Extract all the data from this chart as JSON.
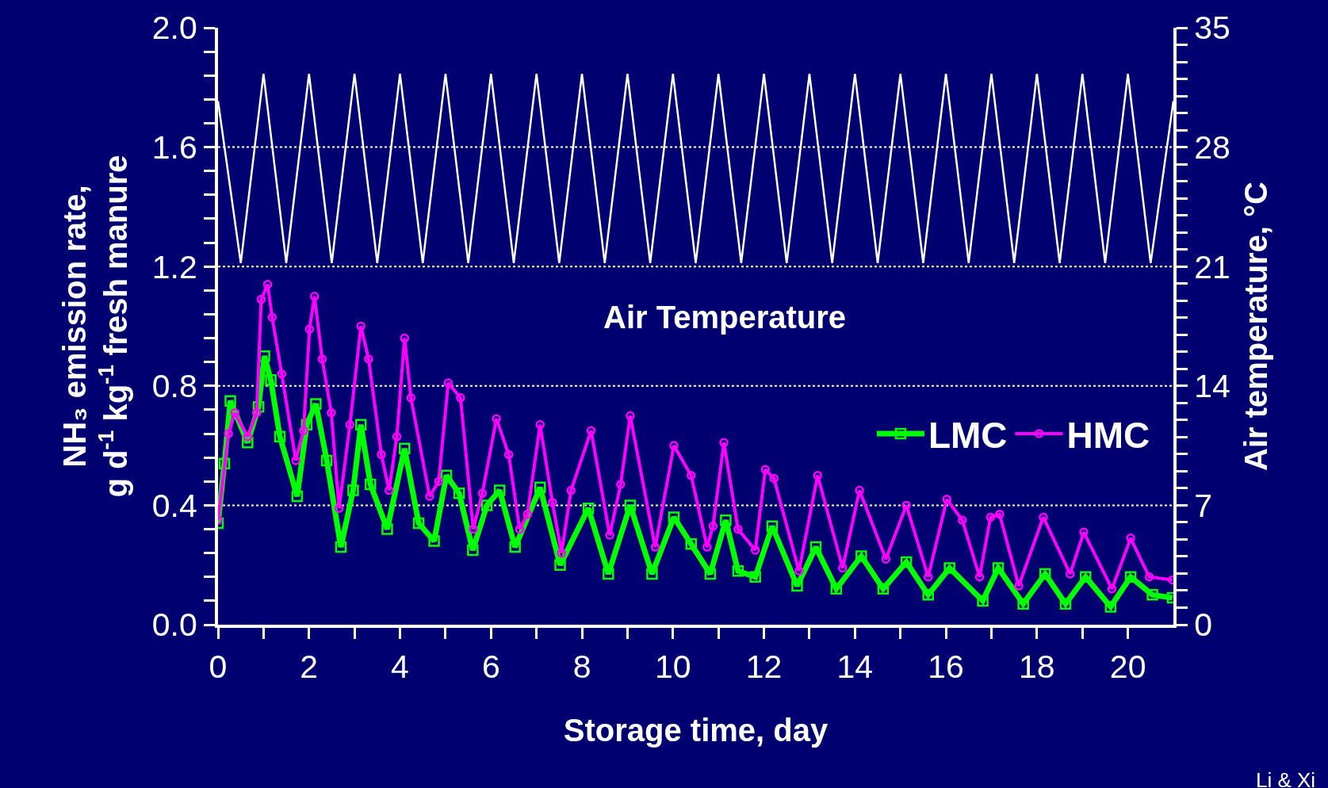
{
  "chart_data": {
    "type": "line",
    "xlabel": "Storage time, day",
    "ylabel": "NH₃ emission rate,\ng d$^{-1}$ kg$^{-1}$ fresh manure",
    "y2label": "Air temperature, °C",
    "annotations": [
      "Air Temperature",
      "Li & Xi"
    ],
    "xlim": [
      0,
      21
    ],
    "xticks": [
      0,
      {
        "value": 1,
        "label": null
      },
      2,
      {
        "value": 3,
        "label": null
      },
      4,
      {
        "value": 5,
        "label": null
      },
      6,
      {
        "value": 7,
        "label": null
      },
      8,
      {
        "value": 9,
        "label": null
      },
      10,
      {
        "value": 11,
        "label": null
      },
      12,
      {
        "value": 13,
        "label": null
      },
      14,
      {
        "value": 15,
        "label": null
      },
      16,
      {
        "value": 17,
        "label": null
      },
      18,
      {
        "value": 19,
        "label": null
      },
      20
    ],
    "ylim": [
      0,
      2
    ],
    "yticks": [
      {
        "value": 0,
        "label": "0.0"
      },
      {
        "value": 0.08,
        "label": null
      },
      {
        "value": 0.16,
        "label": null
      },
      {
        "value": 0.24,
        "label": null
      },
      {
        "value": 0.32,
        "label": null
      },
      {
        "value": 0.4,
        "label": "0.4"
      },
      {
        "value": 0.48,
        "label": null
      },
      {
        "value": 0.56,
        "label": null
      },
      {
        "value": 0.64,
        "label": null
      },
      {
        "value": 0.72,
        "label": null
      },
      {
        "value": 0.8,
        "label": "0.8"
      },
      {
        "value": 0.88,
        "label": null
      },
      {
        "value": 0.96,
        "label": null
      },
      {
        "value": 1.04,
        "label": null
      },
      {
        "value": 1.12,
        "label": null
      },
      {
        "value": 1.2,
        "label": "1.2"
      },
      {
        "value": 1.28,
        "label": null
      },
      {
        "value": 1.36,
        "label": null
      },
      {
        "value": 1.44,
        "label": null
      },
      {
        "value": 1.52,
        "label": null
      },
      {
        "value": 1.6,
        "label": "1.6"
      },
      {
        "value": 1.68,
        "label": null
      },
      {
        "value": 1.76,
        "label": null
      },
      {
        "value": 1.84,
        "label": null
      },
      {
        "value": 1.92,
        "label": null
      },
      {
        "value": 2,
        "label": "2.0"
      }
    ],
    "y2lim": [
      0,
      35
    ],
    "y2ticks": [
      0,
      {
        "value": 1,
        "label": null
      },
      {
        "value": 2,
        "label": null
      },
      {
        "value": 3,
        "label": null
      },
      {
        "value": 4,
        "label": null
      },
      {
        "value": 5,
        "label": null
      },
      {
        "value": 6,
        "label": null
      },
      7,
      {
        "value": 8,
        "label": null
      },
      {
        "value": 9,
        "label": null
      },
      {
        "value": 10,
        "label": null
      },
      {
        "value": 11,
        "label": null
      },
      {
        "value": 12,
        "label": null
      },
      {
        "value": 13,
        "label": null
      },
      14,
      {
        "value": 15,
        "label": null
      },
      {
        "value": 16,
        "label": null
      },
      {
        "value": 17,
        "label": null
      },
      {
        "value": 18,
        "label": null
      },
      {
        "value": 19,
        "label": null
      },
      {
        "value": 20,
        "label": null
      },
      21,
      {
        "value": 22,
        "label": null
      },
      {
        "value": 23,
        "label": null
      },
      {
        "value": 24,
        "label": null
      },
      {
        "value": 25,
        "label": null
      },
      {
        "value": 26,
        "label": null
      },
      {
        "value": 27,
        "label": null
      },
      28,
      {
        "value": 29,
        "label": null
      },
      {
        "value": 30,
        "label": null
      },
      {
        "value": 31,
        "label": null
      },
      {
        "value": 32,
        "label": null
      },
      {
        "value": 33,
        "label": null
      },
      {
        "value": 34,
        "label": null
      },
      35
    ],
    "grid": "y",
    "line_style": "solid",
    "legend": "right",
    "series": [
      {
        "name": "LMC",
        "color": "#00ff00",
        "marker": "square",
        "x": [
          0,
          0.14,
          0.27,
          0.65,
          0.89,
          1.02,
          1.16,
          1.36,
          1.74,
          1.95,
          2.15,
          2.39,
          2.7,
          2.97,
          3.14,
          3.35,
          3.72,
          4.1,
          4.41,
          4.75,
          5.02,
          5.3,
          5.6,
          5.91,
          6.19,
          6.53,
          7.08,
          7.52,
          8.14,
          8.58,
          9.06,
          9.54,
          10.02,
          10.4,
          10.82,
          11.16,
          11.43,
          11.81,
          12.18,
          12.73,
          13.14,
          13.59,
          14.14,
          14.62,
          15.13,
          15.61,
          16.08,
          16.81,
          17.15,
          17.7,
          18.18,
          18.63,
          19.07,
          19.62,
          20.06,
          20.54,
          20.98
        ],
        "values": [
          0.34,
          0.54,
          0.75,
          0.61,
          0.73,
          0.9,
          0.82,
          0.63,
          0.43,
          0.67,
          0.74,
          0.55,
          0.26,
          0.45,
          0.67,
          0.47,
          0.32,
          0.59,
          0.34,
          0.28,
          0.5,
          0.44,
          0.25,
          0.4,
          0.45,
          0.26,
          0.46,
          0.2,
          0.39,
          0.17,
          0.4,
          0.17,
          0.36,
          0.27,
          0.17,
          0.35,
          0.18,
          0.16,
          0.33,
          0.13,
          0.26,
          0.12,
          0.23,
          0.12,
          0.21,
          0.1,
          0.19,
          0.08,
          0.19,
          0.07,
          0.17,
          0.07,
          0.16,
          0.06,
          0.16,
          0.1,
          0.09
        ]
      },
      {
        "name": "HMC",
        "color": "#ff00ff",
        "marker": "circle",
        "x": [
          0,
          0.23,
          0.37,
          0.65,
          0.85,
          0.95,
          1.09,
          1.19,
          1.4,
          1.71,
          1.88,
          2.01,
          2.12,
          2.29,
          2.49,
          2.66,
          2.9,
          3.14,
          3.31,
          3.59,
          3.76,
          3.93,
          4.1,
          4.24,
          4.65,
          4.85,
          5.06,
          5.33,
          5.61,
          5.81,
          6.12,
          6.39,
          6.63,
          6.8,
          7.08,
          7.35,
          7.55,
          7.76,
          8.2,
          8.61,
          8.85,
          9.06,
          9.61,
          10.02,
          10.4,
          10.75,
          10.88,
          11.12,
          11.43,
          11.81,
          12.03,
          12.22,
          12.77,
          13.18,
          13.73,
          14.1,
          14.68,
          15.13,
          15.61,
          16.02,
          16.36,
          16.74,
          16.98,
          17.18,
          17.6,
          18.14,
          18.73,
          19.03,
          19.65,
          20.06,
          20.47,
          20.98
        ],
        "values": [
          0.35,
          0.64,
          0.71,
          0.63,
          0.71,
          1.09,
          1.14,
          1.03,
          0.84,
          0.55,
          0.65,
          0.99,
          1.1,
          0.89,
          0.71,
          0.39,
          0.67,
          1,
          0.89,
          0.57,
          0.45,
          0.63,
          0.96,
          0.76,
          0.43,
          0.48,
          0.81,
          0.76,
          0.32,
          0.44,
          0.69,
          0.57,
          0.32,
          0.37,
          0.67,
          0.41,
          0.24,
          0.45,
          0.65,
          0.3,
          0.47,
          0.7,
          0.26,
          0.6,
          0.5,
          0.26,
          0.33,
          0.61,
          0.32,
          0.25,
          0.52,
          0.49,
          0.18,
          0.5,
          0.19,
          0.45,
          0.22,
          0.4,
          0.16,
          0.42,
          0.35,
          0.16,
          0.36,
          0.37,
          0.13,
          0.36,
          0.17,
          0.31,
          0.12,
          0.29,
          0.16,
          0.15
        ]
      },
      {
        "color": "#ffffff",
        "marker": "none",
        "axis": "y2",
        "x": [
          0,
          0.5,
          1,
          1.5,
          2,
          2.5,
          3,
          3.5,
          4,
          4.5,
          5,
          5.5,
          6,
          6.5,
          7,
          7.5,
          8,
          8.5,
          9,
          9.5,
          10,
          10.5,
          11,
          11.5,
          12,
          12.5,
          13,
          13.5,
          14,
          14.5,
          15,
          15.5,
          16,
          16.5,
          17,
          17.5,
          18,
          18.5,
          19,
          19.5,
          20,
          20.5,
          21
        ],
        "values": [
          30.7,
          21.2,
          32.3,
          21.2,
          32.3,
          21.2,
          32.3,
          21.2,
          32.3,
          21.2,
          32.3,
          21.2,
          32.3,
          21.2,
          32.3,
          21.2,
          32.3,
          21.2,
          32.3,
          21.2,
          32.3,
          21.2,
          32.3,
          21.2,
          32.3,
          21.2,
          32.3,
          21.2,
          32.3,
          21.2,
          32.3,
          21.2,
          32.3,
          21.2,
          32.3,
          21.2,
          32.3,
          21.2,
          32.3,
          21.2,
          32.3,
          21.2,
          30.7
        ]
      }
    ]
  }
}
